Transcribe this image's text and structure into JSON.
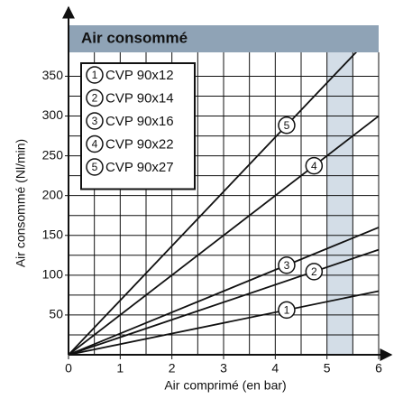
{
  "chart_data": {
    "type": "line",
    "title": "Air consommé",
    "x_label": "Air comprimé (en bar)",
    "y_label": "Air consommé (Nl/min)",
    "x": [
      0,
      6
    ],
    "series": [
      {
        "name": "CVP 90x12",
        "label": "1",
        "color": "#111111",
        "values": [
          0,
          80
        ]
      },
      {
        "name": "CVP 90x14",
        "label": "2",
        "color": "#111111",
        "values": [
          0,
          132
        ]
      },
      {
        "name": "CVP 90x16",
        "label": "3",
        "color": "#111111",
        "values": [
          0,
          160
        ]
      },
      {
        "name": "CVP 90x22",
        "label": "4",
        "color": "#111111",
        "values": [
          0,
          300
        ]
      },
      {
        "name": "CVP 90x27",
        "label": "5",
        "color": "#111111",
        "values": [
          0,
          410
        ]
      }
    ],
    "xlim": [
      0,
      6
    ],
    "xticks": [
      0,
      1,
      2,
      3,
      4,
      5,
      6
    ],
    "ylim": [
      0,
      380
    ],
    "yticks": [
      50,
      100,
      150,
      200,
      250,
      300,
      350
    ],
    "shaded_range": [
      5,
      5.5
    ],
    "shade_color": "#d3dde7",
    "title_band_color": "#8fa3b6",
    "grid": true,
    "legend": "upper left"
  }
}
